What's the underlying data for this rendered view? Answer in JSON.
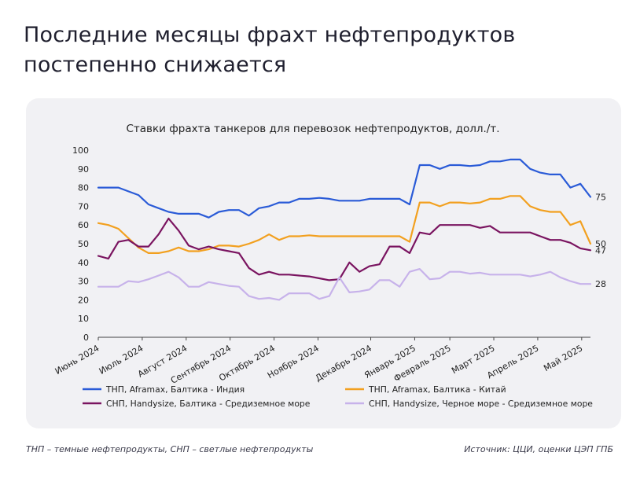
{
  "headline": "Последние месяцы фрахт нефтепродуктов постепенно снижается",
  "footnote_left": "ТНП – темные нефтепродукты, СНП – светлые нефтепродукты",
  "footnote_right": "Источник: ЦЦИ, оценки ЦЭП ГПБ",
  "chart_data": {
    "type": "line",
    "title": "Ставки фрахта танкеров для перевозок нефтепродуктов, долл./т.",
    "ylim": [
      0,
      100
    ],
    "yticks": [
      0,
      10,
      20,
      30,
      40,
      50,
      60,
      70,
      80,
      90,
      100
    ],
    "grid": false,
    "legend_position": "bottom",
    "x_period_labels": [
      "Июнь 2024",
      "Июль 2024",
      "Август 2024",
      "Сентябрь 2024",
      "Октябрь 2024",
      "Ноябрь 2024",
      "Декабрь 2024",
      "Январь 2025",
      "Февраль 2025",
      "Март 2025",
      "Апрель 2025",
      "Май 2025"
    ],
    "x_period_week_index": [
      0,
      5,
      10,
      15,
      20,
      25,
      31,
      36,
      40,
      45,
      50,
      55
    ],
    "x_weeks": 57,
    "series": [
      {
        "name": "ТНП, Aframax, Балтика - Индия",
        "color": "#2a5bd7",
        "end_label": "75",
        "values": [
          80,
          80,
          80,
          78,
          76,
          71,
          69,
          67,
          66,
          66,
          66,
          64,
          67,
          68,
          68,
          65,
          69,
          70,
          72,
          72,
          74,
          74,
          74.5,
          74,
          73,
          73,
          73,
          74,
          74,
          74,
          74,
          71,
          92,
          92,
          90,
          92,
          92,
          91.5,
          92,
          94,
          94,
          95,
          95,
          90,
          88,
          87,
          87,
          80,
          82,
          75
        ]
      },
      {
        "name": "ТНП, Aframax, Балтика - Китай",
        "color": "#f2a01f",
        "end_label": "50",
        "values": [
          61,
          60,
          58,
          53,
          48,
          45,
          45,
          46,
          48,
          46,
          46,
          47,
          49,
          49,
          48.5,
          50,
          52,
          55,
          52,
          54,
          54,
          54.5,
          54,
          54,
          54,
          54,
          54,
          54,
          54,
          54,
          54,
          51,
          72,
          72,
          70,
          72,
          72,
          71.5,
          72,
          74,
          74,
          75.5,
          75.5,
          70,
          68,
          67,
          67,
          60,
          62,
          50
        ]
      },
      {
        "name": "СНП, Handysize, Балтика - Средиземное море",
        "color": "#7a1460",
        "end_label": "47",
        "values": [
          43.5,
          42,
          51,
          52,
          48.5,
          48.5,
          55,
          63.5,
          57,
          49,
          47,
          48.5,
          47,
          46,
          45,
          37,
          33.5,
          35,
          33.5,
          33.5,
          33,
          32.5,
          31.5,
          30.5,
          31,
          40,
          35,
          38,
          39,
          48.5,
          48.5,
          45,
          56,
          55,
          60,
          60,
          60,
          60,
          58.5,
          59.5,
          56,
          56,
          56,
          56,
          54,
          52,
          52,
          50.5,
          47.5,
          46.5
        ]
      },
      {
        "name": "СНП, Handysize, Черное море - Средиземное море",
        "color": "#c7b2ea",
        "end_label": "28",
        "values": [
          27,
          27,
          27,
          30,
          29.5,
          31,
          33,
          35,
          32,
          27,
          27,
          29.5,
          28.5,
          27.5,
          27,
          22,
          20.5,
          21,
          20,
          23.5,
          23.5,
          23.5,
          20.5,
          22,
          32,
          24,
          24.5,
          25.5,
          30.5,
          30.5,
          27,
          35,
          36.5,
          31,
          31.5,
          35,
          35,
          34,
          34.5,
          33.5,
          33.5,
          33.5,
          33.5,
          32.5,
          33.5,
          35,
          32,
          30,
          28.5,
          28.5
        ]
      }
    ]
  }
}
